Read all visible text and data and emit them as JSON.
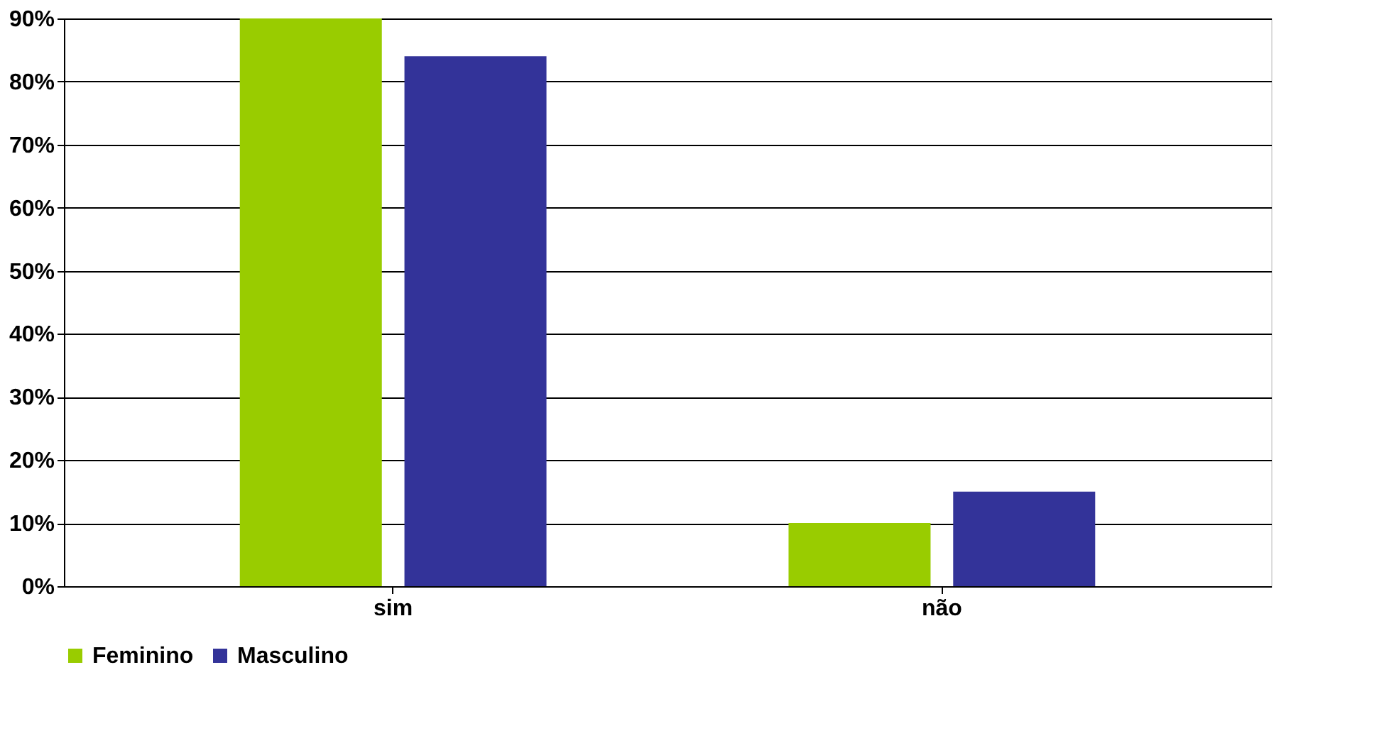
{
  "chart_data": {
    "type": "bar",
    "categories": [
      "sim",
      "não"
    ],
    "series": [
      {
        "name": "Feminino",
        "color": "#99cc00",
        "values": [
          90,
          10
        ]
      },
      {
        "name": "Masculino",
        "color": "#333399",
        "values": [
          84,
          15
        ]
      }
    ],
    "ylim": [
      0,
      90
    ],
    "yticks": [
      {
        "value": 0,
        "label": "0%"
      },
      {
        "value": 10,
        "label": "10%"
      },
      {
        "value": 20,
        "label": "20%"
      },
      {
        "value": 30,
        "label": "30%"
      },
      {
        "value": 40,
        "label": "40%"
      },
      {
        "value": 50,
        "label": "50%"
      },
      {
        "value": 60,
        "label": "60%"
      },
      {
        "value": 70,
        "label": "70%"
      },
      {
        "value": 80,
        "label": "80%"
      },
      {
        "value": 90,
        "label": "90%"
      }
    ],
    "grid": "y",
    "legend": "bottom"
  }
}
